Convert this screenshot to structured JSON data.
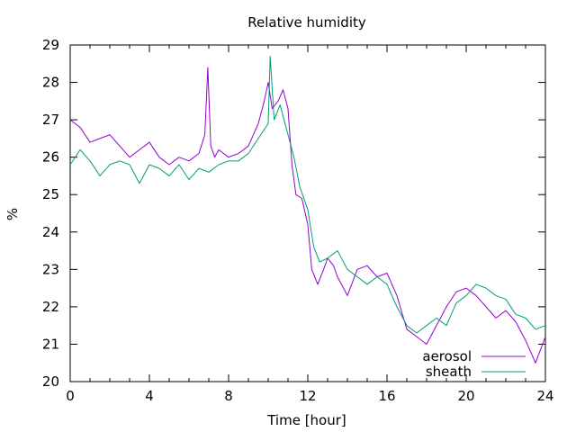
{
  "chart_data": {
    "type": "line",
    "title": "Relative humidity",
    "xlabel": "Time [hour]",
    "ylabel": "%",
    "xlim": [
      0,
      24
    ],
    "ylim": [
      20,
      29
    ],
    "xticks": [
      0,
      4,
      8,
      12,
      16,
      20,
      24
    ],
    "yticks": [
      20,
      21,
      22,
      23,
      24,
      25,
      26,
      27,
      28,
      29
    ],
    "grid": false,
    "legend_position": "bottom-right",
    "series": [
      {
        "name": "aerosol",
        "color": "#9400d3",
        "x": [
          0,
          0.5,
          1,
          1.5,
          2,
          2.5,
          3,
          3.5,
          4,
          4.5,
          5,
          5.5,
          6,
          6.5,
          6.8,
          6.95,
          7.1,
          7.3,
          7.5,
          8,
          8.5,
          9,
          9.5,
          9.8,
          10,
          10.2,
          10.5,
          10.75,
          11,
          11.2,
          11.4,
          11.7,
          12,
          12.2,
          12.5,
          12.8,
          13,
          13.3,
          13.5,
          14,
          14.5,
          15,
          15.5,
          16,
          16.5,
          17,
          17.5,
          18,
          18.5,
          19,
          19.5,
          20,
          20.5,
          21,
          21.5,
          22,
          22.5,
          23,
          23.5,
          24
        ],
        "y": [
          27.0,
          26.8,
          26.4,
          26.5,
          26.6,
          26.3,
          26.0,
          26.2,
          26.4,
          26.0,
          25.8,
          26.0,
          25.9,
          26.1,
          26.6,
          28.4,
          26.3,
          26.0,
          26.2,
          26.0,
          26.1,
          26.3,
          26.9,
          27.5,
          28.0,
          27.3,
          27.5,
          27.8,
          27.3,
          25.8,
          25.0,
          24.9,
          24.2,
          23.0,
          22.6,
          23.0,
          23.3,
          23.1,
          22.8,
          22.3,
          23.0,
          23.1,
          22.8,
          22.9,
          22.3,
          21.4,
          21.2,
          21.0,
          21.5,
          22.0,
          22.4,
          22.5,
          22.3,
          22.0,
          21.7,
          21.9,
          21.6,
          21.1,
          20.5,
          21.2
        ]
      },
      {
        "name": "sheath",
        "color": "#009e73",
        "x": [
          0,
          0.5,
          1,
          1.5,
          2,
          2.5,
          3,
          3.5,
          4,
          4.5,
          5,
          5.5,
          6,
          6.5,
          7,
          7.5,
          8,
          8.5,
          9,
          9.5,
          10,
          10.1,
          10.3,
          10.6,
          11,
          11.3,
          11.6,
          12,
          12.3,
          12.6,
          13,
          13.5,
          14,
          14.5,
          15,
          15.5,
          16,
          16.5,
          17,
          17.5,
          18,
          18.5,
          19,
          19.5,
          20,
          20.5,
          21,
          21.5,
          22,
          22.5,
          23,
          23.5,
          24
        ],
        "y": [
          25.8,
          26.2,
          25.9,
          25.5,
          25.8,
          25.9,
          25.8,
          25.3,
          25.8,
          25.7,
          25.5,
          25.8,
          25.4,
          25.7,
          25.6,
          25.8,
          25.9,
          25.9,
          26.1,
          26.5,
          26.9,
          28.7,
          27.0,
          27.4,
          26.6,
          26.0,
          25.2,
          24.6,
          23.6,
          23.2,
          23.3,
          23.5,
          23.0,
          22.8,
          22.6,
          22.8,
          22.6,
          22.0,
          21.5,
          21.3,
          21.5,
          21.7,
          21.5,
          22.1,
          22.3,
          22.6,
          22.5,
          22.3,
          22.2,
          21.8,
          21.7,
          21.4,
          21.5
        ]
      }
    ]
  }
}
